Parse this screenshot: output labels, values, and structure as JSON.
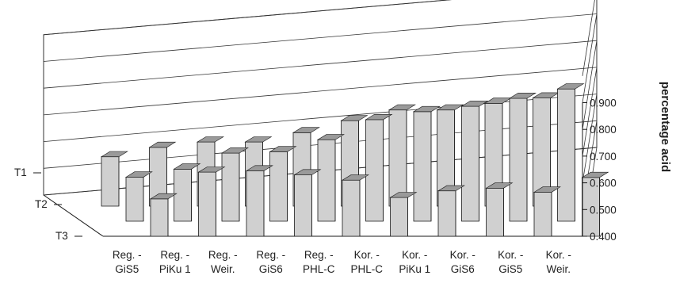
{
  "chart_data": {
    "type": "bar",
    "subtype": "3d-bar",
    "title": "",
    "xlabel": "",
    "ylabel": "percentage acid",
    "ylim": [
      0.4,
      1.0
    ],
    "ytick_values": [
      0.4,
      0.5,
      0.6,
      0.7,
      0.8,
      0.9
    ],
    "ytick_labels": [
      "0.400",
      "0.500",
      "0.600",
      "0.700",
      "0.800",
      "0.900"
    ],
    "grid": true,
    "categories": [
      [
        "Reg. -",
        "GiS5"
      ],
      [
        "Reg. -",
        "PiKu 1"
      ],
      [
        "Reg. -",
        "Weir."
      ],
      [
        "Reg. -",
        "GiS6"
      ],
      [
        "Reg. -",
        "PHL-C"
      ],
      [
        "Kor. -",
        "PHL-C"
      ],
      [
        "Kor. -",
        "PiKu 1"
      ],
      [
        "Kor. -",
        "GiS6"
      ],
      [
        "Kor. -",
        "GiS5"
      ],
      [
        "Kor. -",
        "Weir."
      ]
    ],
    "series": [
      {
        "name": "T1",
        "values": [
          0.585,
          0.62,
          0.64,
          0.64,
          0.675,
          0.72,
          0.76,
          0.76,
          0.785,
          0.805
        ]
      },
      {
        "name": "T2",
        "values": [
          0.565,
          0.595,
          0.655,
          0.66,
          0.705,
          0.78,
          0.81,
          0.83,
          0.86,
          0.895
        ]
      },
      {
        "name": "T3",
        "values": [
          0.54,
          0.64,
          0.645,
          0.63,
          0.61,
          0.545,
          0.57,
          0.58,
          0.565,
          0.62
        ]
      }
    ],
    "colors": {
      "front": "#d0d0d0",
      "side": "#8c8c8c",
      "top": "#9a9a9a",
      "stroke": "#1a1a1a",
      "grid": "#333333"
    }
  }
}
